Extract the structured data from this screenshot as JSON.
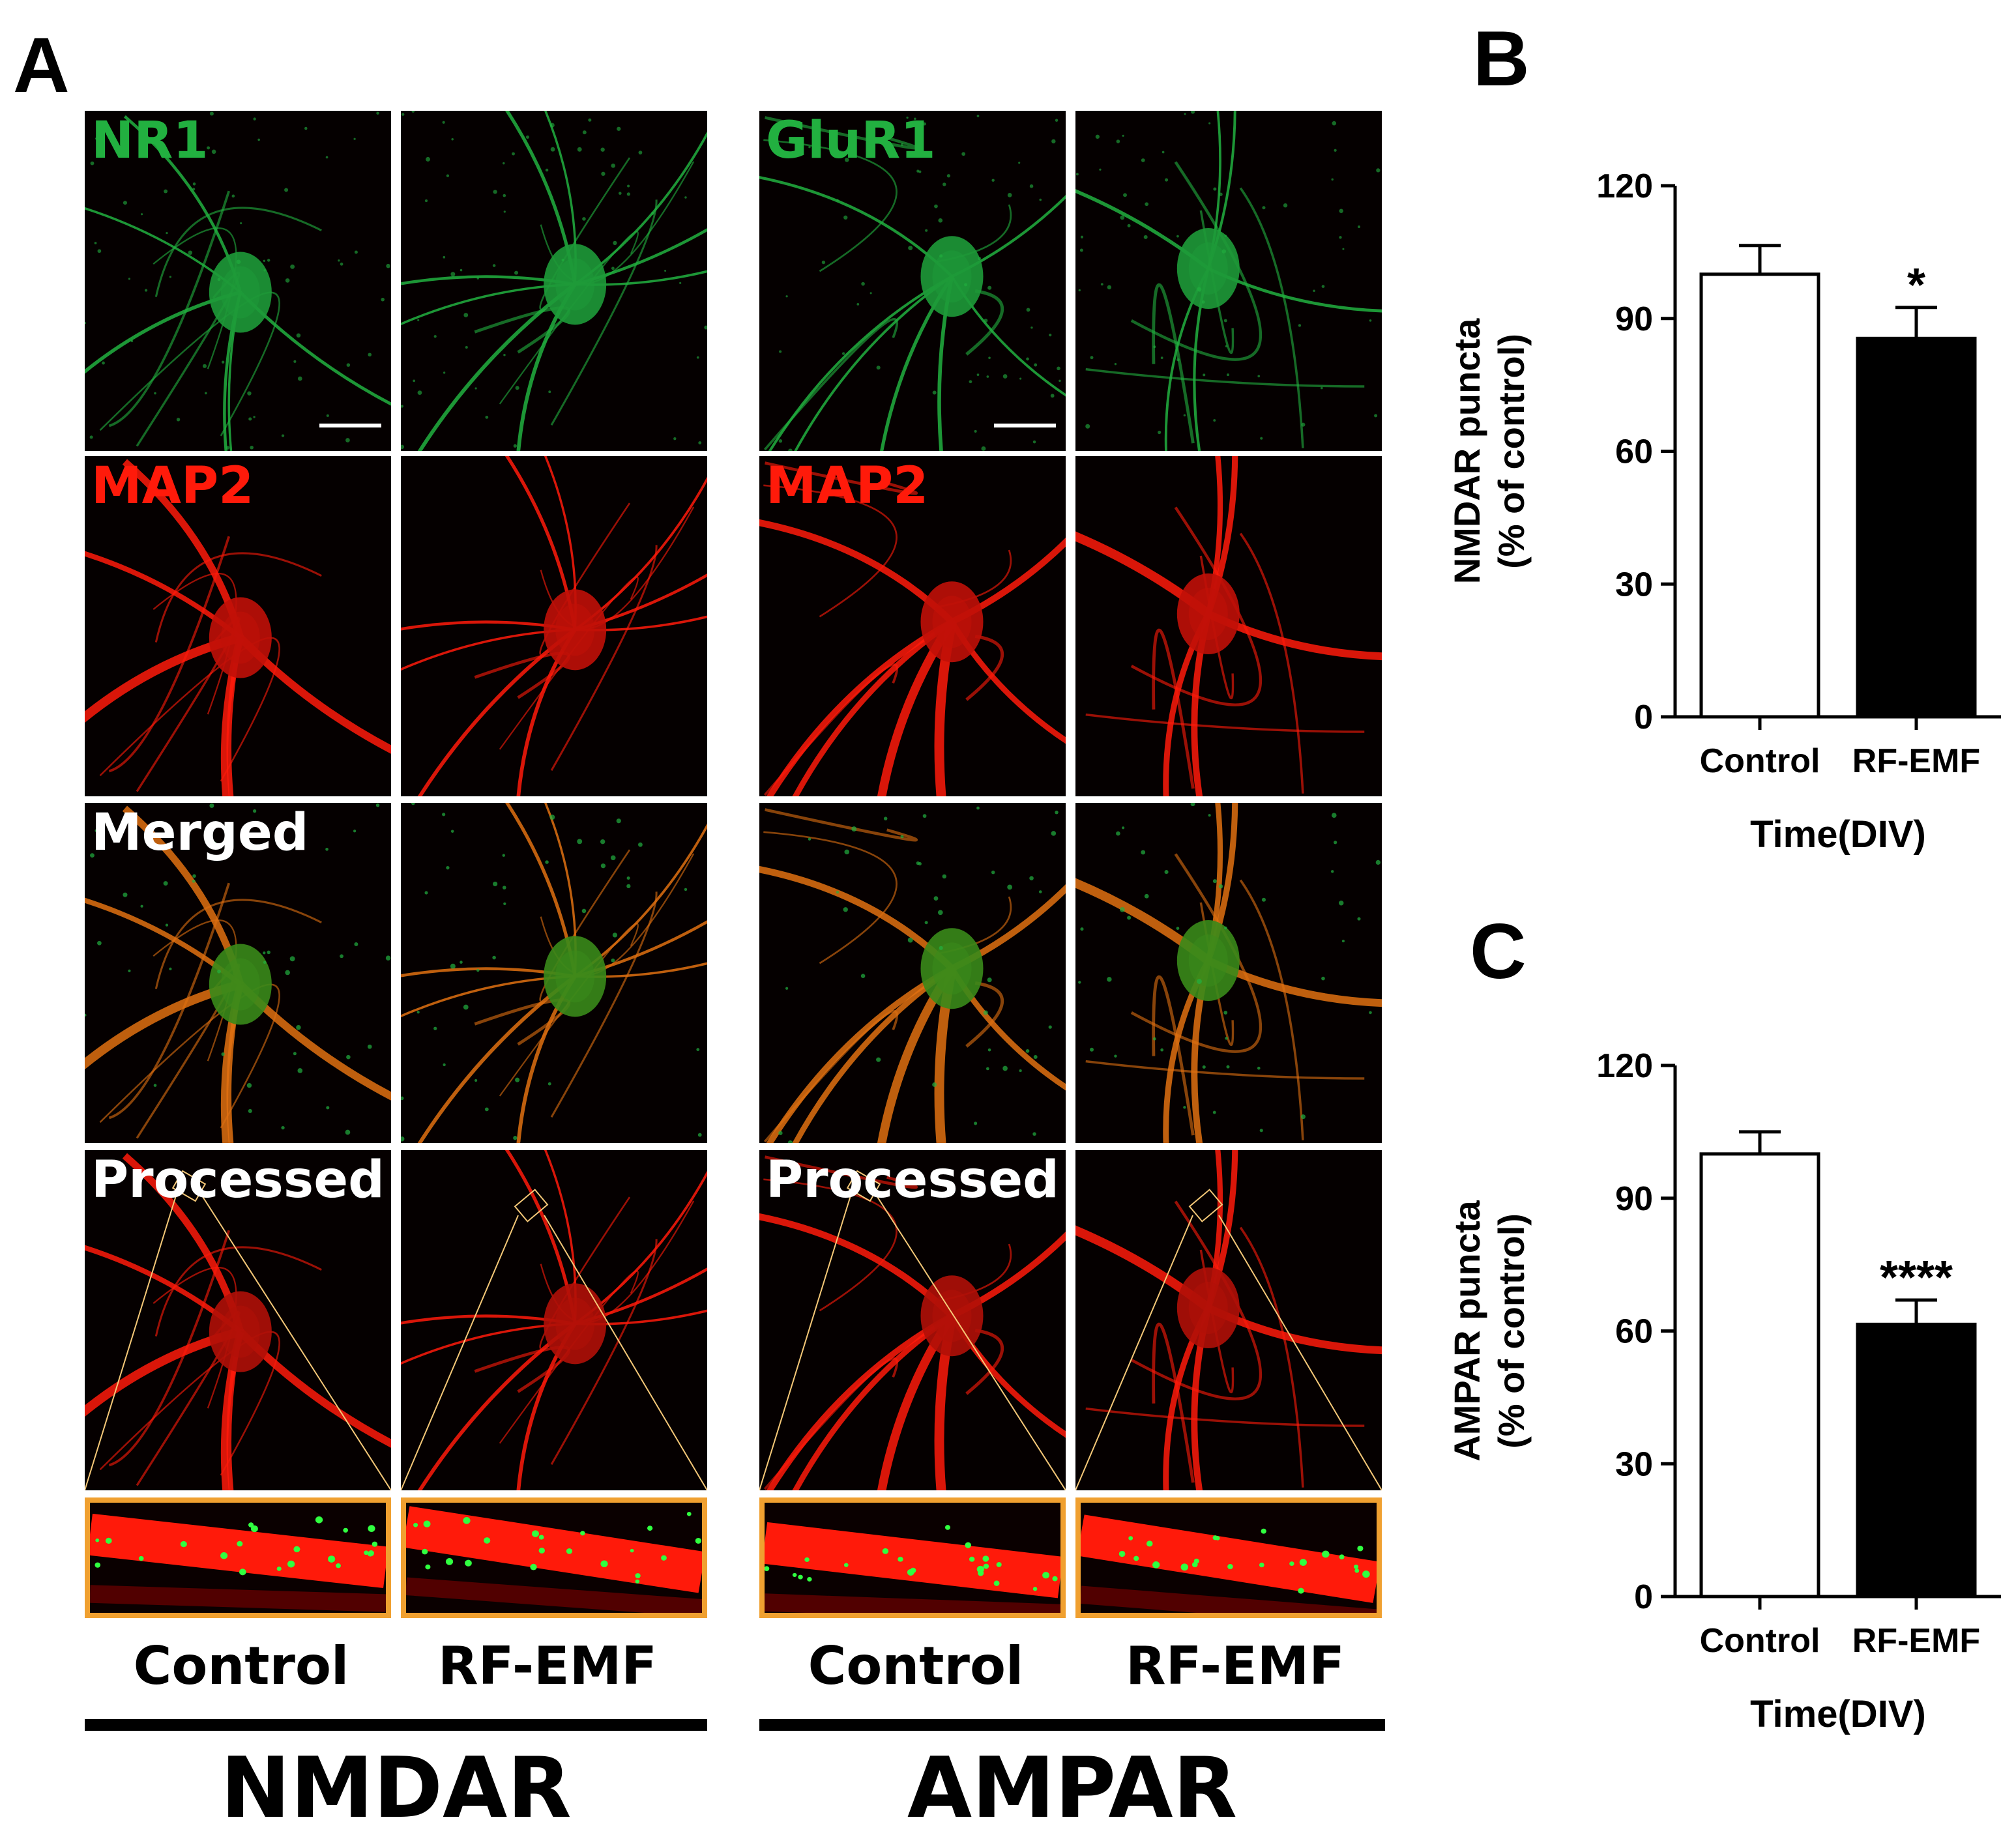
{
  "panel_letters": {
    "a": "A",
    "b": "B",
    "c": "C"
  },
  "micrographs": {
    "row_labels": {
      "nmdar_row1": "NR1",
      "ampar_row1": "GluR1",
      "row2": "MAP2",
      "row3": "Merged",
      "row4": "Processed"
    },
    "columns": [
      "Control",
      "RF-EMF",
      "Control",
      "RF-EMF"
    ],
    "groups": [
      "NMDAR",
      "AMPAR"
    ],
    "colors": {
      "green": "#22b040",
      "red": "#ff1a0a",
      "merge": "#e07010",
      "inset_border": "#f0a030",
      "outline": "#f5c878"
    }
  },
  "chart_data": [
    {
      "type": "bar",
      "panel": "B",
      "categories": [
        "Control",
        "RF-EMF"
      ],
      "values": [
        100,
        85.5
      ],
      "errors": [
        6.5,
        7
      ],
      "bar_colors": [
        "#ffffff",
        "#000000"
      ],
      "significance": [
        "",
        "*"
      ],
      "xlabel": "Time(DIV)",
      "ylabel_lines": [
        "NMDAR puncta",
        "(% of control)"
      ],
      "ylim": [
        0,
        120
      ],
      "yticks": [
        "0",
        "30",
        "60",
        "90",
        "120"
      ]
    },
    {
      "type": "bar",
      "panel": "C",
      "categories": [
        "Control",
        "RF-EMF"
      ],
      "values": [
        100,
        61.5
      ],
      "errors": [
        5,
        5.5
      ],
      "bar_colors": [
        "#ffffff",
        "#000000"
      ],
      "significance": [
        "",
        "****"
      ],
      "xlabel": "Time(DIV)",
      "ylabel_lines": [
        "AMPAR puncta",
        "(% of control)"
      ],
      "ylim": [
        0,
        120
      ],
      "yticks": [
        "0",
        "30",
        "60",
        "90",
        "120"
      ]
    }
  ]
}
